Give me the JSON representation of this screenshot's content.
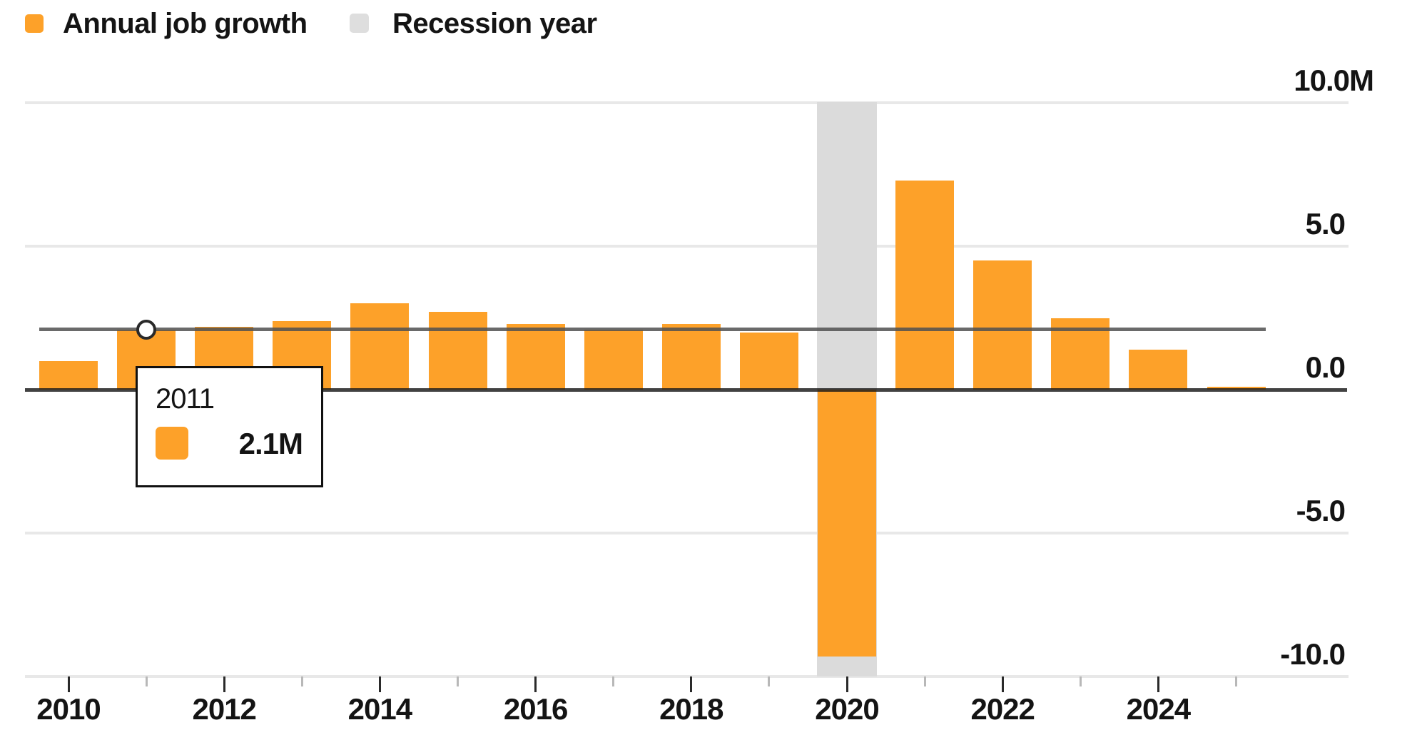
{
  "legend": {
    "items": [
      {
        "label": "Annual job growth",
        "color": "#fda129"
      },
      {
        "label": "Recession year",
        "color": "#dedede"
      }
    ]
  },
  "chart_data": {
    "type": "bar",
    "title": "",
    "unit": "M",
    "x": [
      2010,
      2011,
      2012,
      2013,
      2014,
      2015,
      2016,
      2017,
      2018,
      2019,
      2020,
      2021,
      2022,
      2023,
      2024,
      2025
    ],
    "series": [
      {
        "name": "Annual job growth",
        "color": "#fda129",
        "values": [
          1.0,
          2.1,
          2.2,
          2.4,
          3.0,
          2.7,
          2.3,
          2.1,
          2.3,
          2.0,
          -9.3,
          7.3,
          4.5,
          2.5,
          1.4,
          0.1
        ]
      }
    ],
    "recession_years": [
      2020
    ],
    "recession_color": "#dbdbdb",
    "y_axis": {
      "side": "right",
      "range": [
        -10,
        10
      ],
      "ticks": [
        {
          "value": 10,
          "label": "10.0M"
        },
        {
          "value": 5,
          "label": "5.0"
        },
        {
          "value": 0,
          "label": "0.0"
        },
        {
          "value": -5,
          "label": "-5.0"
        },
        {
          "value": -10,
          "label": "-10.0"
        }
      ]
    },
    "x_axis": {
      "major_tick_years": [
        2010,
        2012,
        2014,
        2016,
        2018,
        2020,
        2022,
        2024
      ],
      "minor_tick_years": [
        2011,
        2013,
        2015,
        2017,
        2019,
        2021,
        2023,
        2025
      ],
      "labeled_years": [
        "2010",
        "2012",
        "2014",
        "2016",
        "2018",
        "2020",
        "2022",
        "2024"
      ]
    },
    "grid": "horizontal",
    "legend_position": "top-left"
  },
  "tooltip": {
    "year": "2011",
    "value": 2.1,
    "value_label": "2.1M",
    "series_color": "#fda129"
  }
}
